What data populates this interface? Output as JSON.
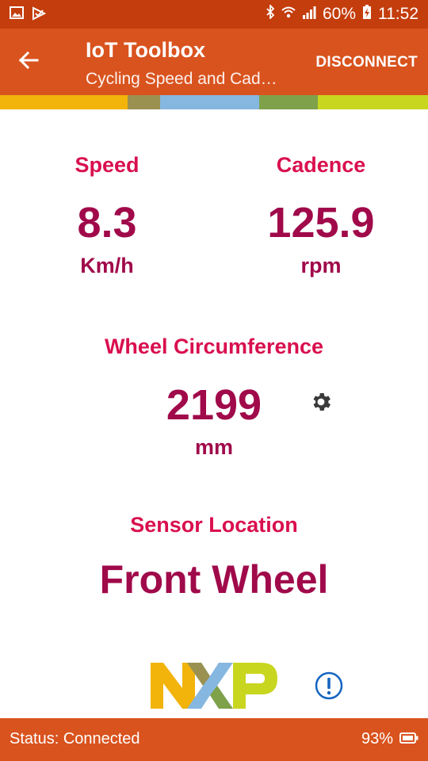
{
  "status_bar": {
    "left_icons": [
      "image-icon",
      "check-send-icon"
    ],
    "right_icons": [
      "bluetooth-icon",
      "wifi-icon",
      "signal-icon",
      "battery-charging-icon"
    ],
    "battery": "60%",
    "time": "11:52"
  },
  "app_bar": {
    "title": "IoT Toolbox",
    "subtitle": "Cycling Speed and Cad…",
    "action": "DISCONNECT",
    "back_icon": "arrow-left-icon"
  },
  "color_strip": [
    "#f2b30a",
    "#9a9150",
    "#86b7e0",
    "#7ea14a",
    "#c9d61f"
  ],
  "speed": {
    "label": "Speed",
    "value": "8.3",
    "unit": "Km/h"
  },
  "cadence": {
    "label": "Cadence",
    "value": "125.9",
    "unit": "rpm"
  },
  "wheel": {
    "label": "Wheel Circumference",
    "value": "2199",
    "unit": "mm",
    "settings_icon": "gear-icon"
  },
  "sensor": {
    "label": "Sensor Location",
    "value": "Front Wheel"
  },
  "brand": {
    "logo_text": "NXP",
    "info_icon": "exclamation-circle-icon"
  },
  "footer": {
    "status": "Status: Connected",
    "battery": "93%",
    "battery_icon": "battery-icon"
  },
  "colors": {
    "label": "#d90f4e",
    "value": "#a0094a",
    "accent": "#d9531e",
    "statusbar": "#c43d0c",
    "info_blue": "#1565c0"
  }
}
